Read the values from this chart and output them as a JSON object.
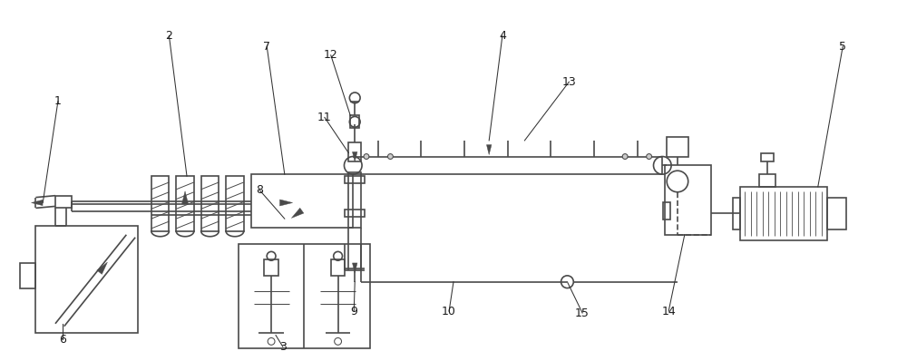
{
  "bg_color": "#ffffff",
  "lc": "#4a4a4a",
  "lw": 1.2,
  "tlw": 0.75,
  "hlw": 0.6,
  "label_fs": 9,
  "label_color": "#1a1a1a"
}
